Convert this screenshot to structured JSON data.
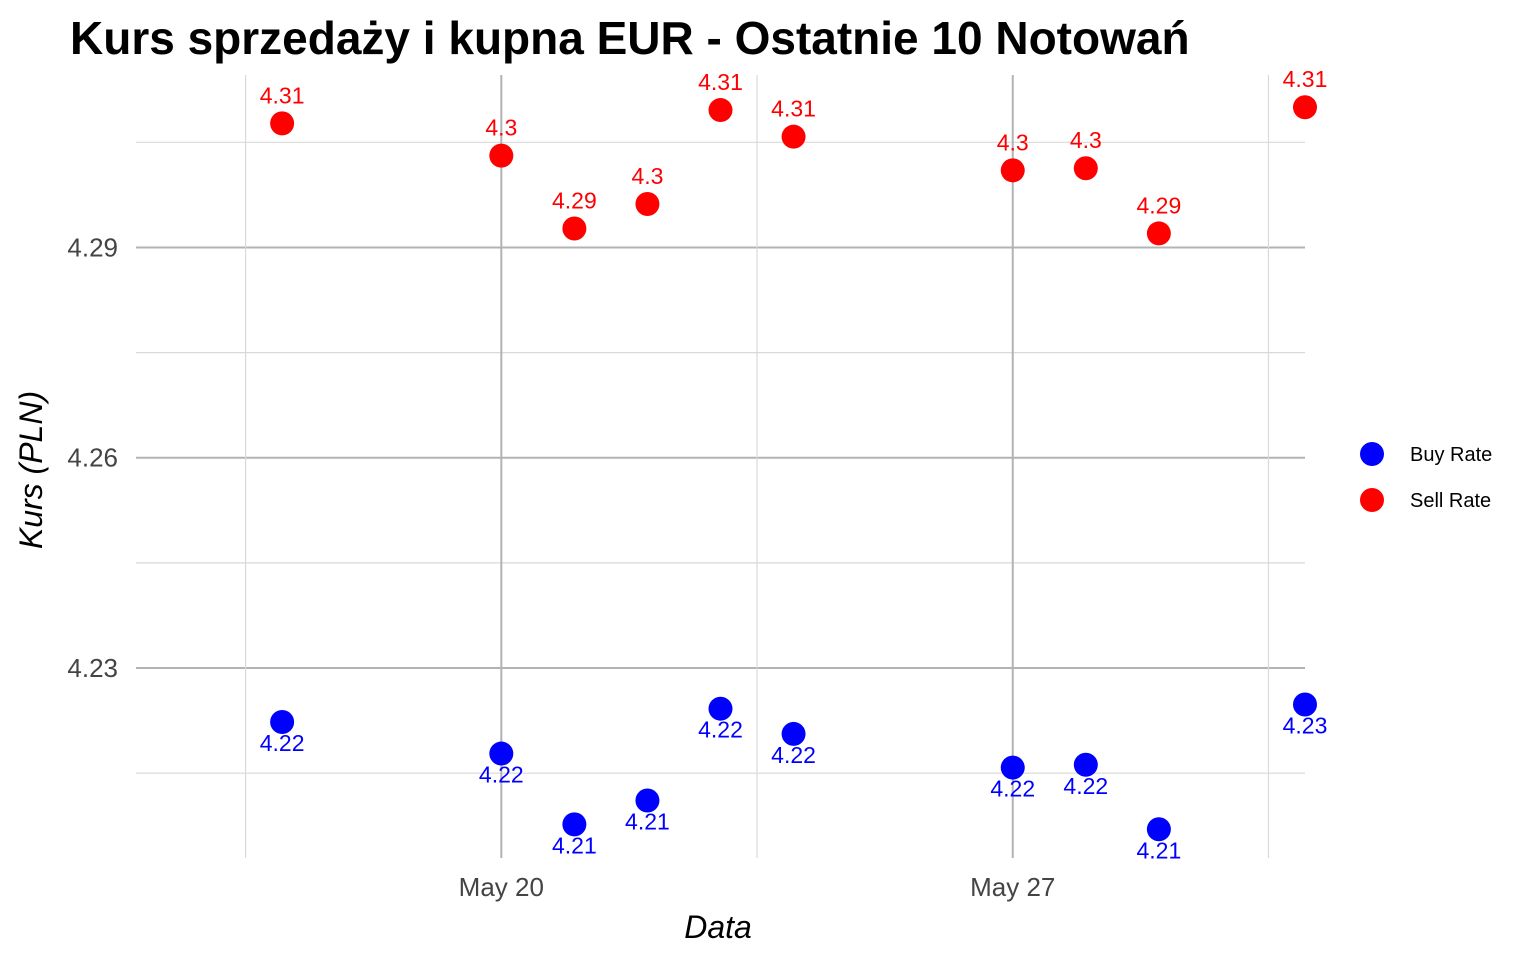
{
  "chart_data": {
    "type": "scatter",
    "title": "Kurs sprzedaży i kupna EUR - Ostatnie 10 Notowań",
    "xlabel": "Data",
    "ylabel": "Kurs (PLN)",
    "x_type": "date",
    "xlim": [
      "2024-05-15",
      "2024-05-31"
    ],
    "ylim": [
      4.2029,
      4.3146
    ],
    "x_ticks": [
      "2024-05-20",
      "2024-05-27"
    ],
    "x_tick_labels": [
      "May 20",
      "May 27"
    ],
    "y_ticks": [
      4.23,
      4.26,
      4.29
    ],
    "y_tick_labels": [
      "4.23",
      "4.26",
      "4.29"
    ],
    "grid": true,
    "legend_position": "right",
    "series": [
      {
        "name": "Buy Rate",
        "color": "#0000ff",
        "label_position": "below",
        "points": [
          {
            "x": "2024-05-17",
            "y": 4.2223,
            "label": "4.22"
          },
          {
            "x": "2024-05-20",
            "y": 4.2178,
            "label": "4.22"
          },
          {
            "x": "2024-05-21",
            "y": 4.2077,
            "label": "4.21"
          },
          {
            "x": "2024-05-22",
            "y": 4.2111,
            "label": "4.21"
          },
          {
            "x": "2024-05-23",
            "y": 4.2242,
            "label": "4.22"
          },
          {
            "x": "2024-05-24",
            "y": 4.2206,
            "label": "4.22"
          },
          {
            "x": "2024-05-27",
            "y": 4.2158,
            "label": "4.22"
          },
          {
            "x": "2024-05-28",
            "y": 4.2162,
            "label": "4.22"
          },
          {
            "x": "2024-05-29",
            "y": 4.207,
            "label": "4.21"
          },
          {
            "x": "2024-05-31",
            "y": 4.2248,
            "label": "4.23"
          }
        ]
      },
      {
        "name": "Sell Rate",
        "color": "#ff0000",
        "label_position": "above",
        "points": [
          {
            "x": "2024-05-17",
            "y": 4.3077,
            "label": "4.31"
          },
          {
            "x": "2024-05-20",
            "y": 4.3031,
            "label": "4.3"
          },
          {
            "x": "2024-05-21",
            "y": 4.2927,
            "label": "4.29"
          },
          {
            "x": "2024-05-22",
            "y": 4.2962,
            "label": "4.3"
          },
          {
            "x": "2024-05-23",
            "y": 4.3096,
            "label": "4.31"
          },
          {
            "x": "2024-05-24",
            "y": 4.3058,
            "label": "4.31"
          },
          {
            "x": "2024-05-27",
            "y": 4.301,
            "label": "4.3"
          },
          {
            "x": "2024-05-28",
            "y": 4.3013,
            "label": "4.3"
          },
          {
            "x": "2024-05-29",
            "y": 4.292,
            "label": "4.29"
          },
          {
            "x": "2024-05-31",
            "y": 4.31,
            "label": "4.31"
          }
        ]
      }
    ]
  }
}
